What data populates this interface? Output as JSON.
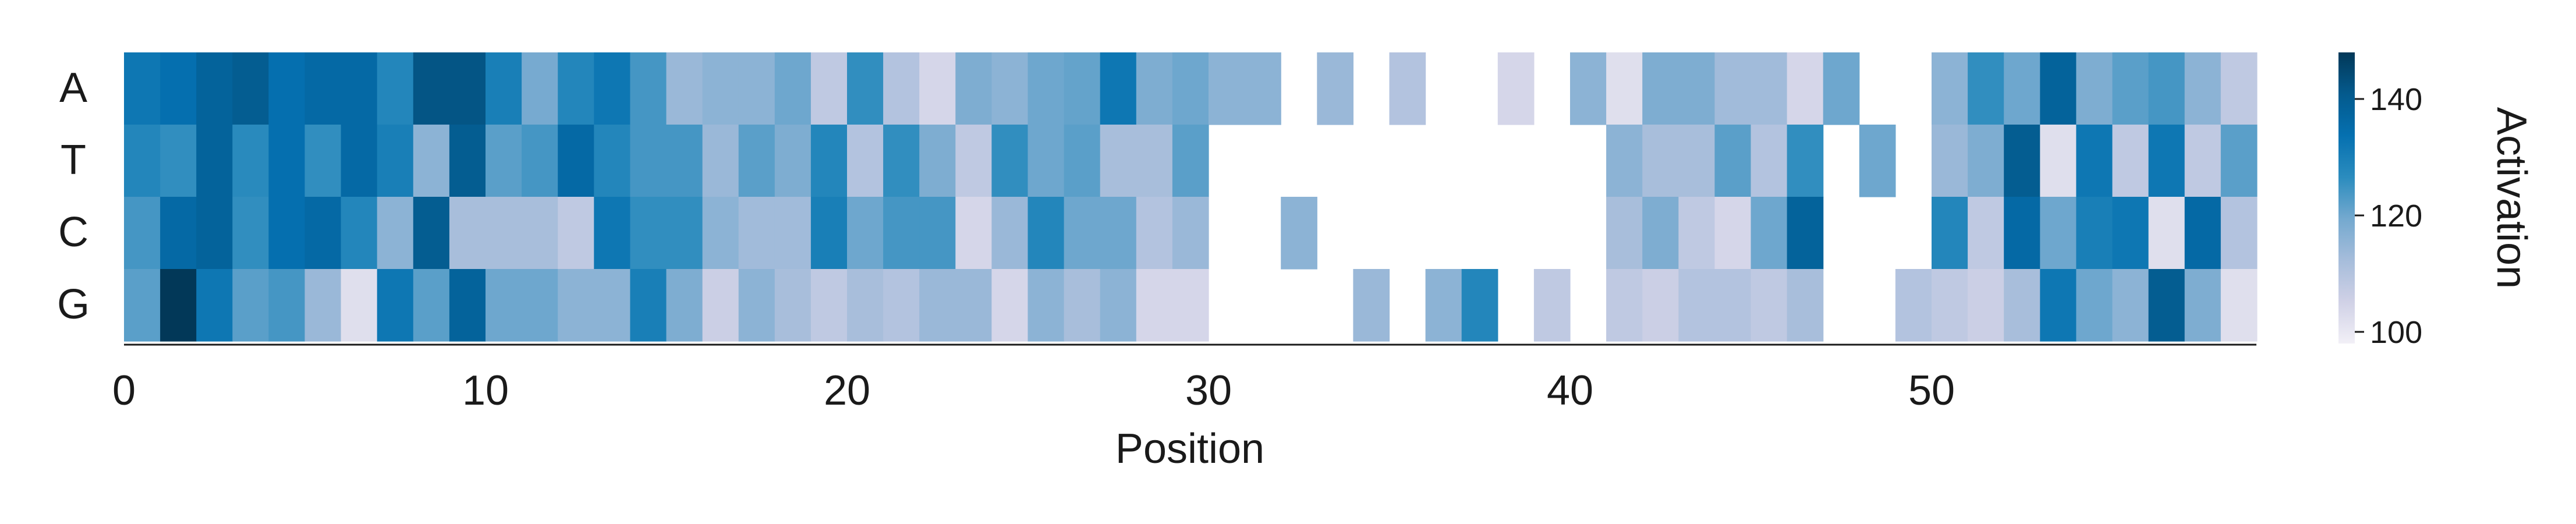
{
  "chart_data": {
    "type": "heatmap",
    "title": "",
    "xlabel": "Position",
    "ylabel": "",
    "rows": [
      "A",
      "T",
      "C",
      "G"
    ],
    "x_ticks": [
      0,
      10,
      20,
      30,
      40,
      50
    ],
    "n_positions": 59,
    "colorbar": {
      "label": "Activation",
      "ticks": [
        100,
        120,
        140
      ],
      "vmin": 98,
      "vmax": 148,
      "colors": [
        "#f2f0f7",
        "#d0d1e6",
        "#a6bddb",
        "#74a9cf",
        "#2b8cbe",
        "#0570b0",
        "#045a8d",
        "#023858"
      ]
    },
    "values": [
      [
        132,
        134,
        138,
        140,
        134,
        136,
        136,
        128,
        142,
        142,
        130,
        119,
        128,
        132,
        124,
        114,
        116,
        116,
        120,
        108,
        126,
        110,
        104,
        118,
        116,
        120,
        121,
        132,
        118,
        120,
        116,
        116,
        null,
        114,
        null,
        110,
        null,
        null,
        104,
        null,
        116,
        102,
        118,
        118,
        113,
        113,
        104,
        120,
        null,
        null,
        116,
        126,
        120,
        138,
        118,
        122,
        124,
        116,
        108
      ],
      [
        128,
        126,
        138,
        127,
        134,
        126,
        136,
        130,
        116,
        140,
        122,
        124,
        136,
        128,
        124,
        124,
        114,
        122,
        118,
        128,
        110,
        126,
        118,
        108,
        126,
        120,
        122,
        112,
        112,
        122,
        null,
        null,
        null,
        null,
        null,
        null,
        null,
        null,
        null,
        null,
        null,
        116,
        112,
        112,
        122,
        110,
        126,
        null,
        120,
        null,
        114,
        118,
        140,
        102,
        132,
        108,
        132,
        108,
        122
      ],
      [
        124,
        136,
        138,
        126,
        134,
        136,
        128,
        116,
        140,
        112,
        112,
        112,
        108,
        132,
        126,
        126,
        116,
        113,
        113,
        130,
        120,
        124,
        124,
        104,
        114,
        128,
        120,
        120,
        110,
        114,
        null,
        null,
        116,
        null,
        null,
        null,
        null,
        null,
        null,
        null,
        null,
        112,
        118,
        108,
        104,
        120,
        138,
        null,
        null,
        null,
        128,
        108,
        136,
        120,
        130,
        132,
        102,
        136,
        110
      ],
      [
        122,
        148,
        132,
        122,
        124,
        114,
        102,
        132,
        122,
        138,
        120,
        120,
        116,
        116,
        130,
        118,
        106,
        116,
        112,
        108,
        112,
        110,
        114,
        114,
        104,
        116,
        112,
        116,
        104,
        104,
        null,
        null,
        null,
        null,
        114,
        null,
        116,
        128,
        null,
        108,
        null,
        108,
        106,
        110,
        110,
        108,
        112,
        null,
        null,
        110,
        108,
        106,
        112,
        132,
        120,
        116,
        140,
        118,
        102
      ]
    ]
  }
}
